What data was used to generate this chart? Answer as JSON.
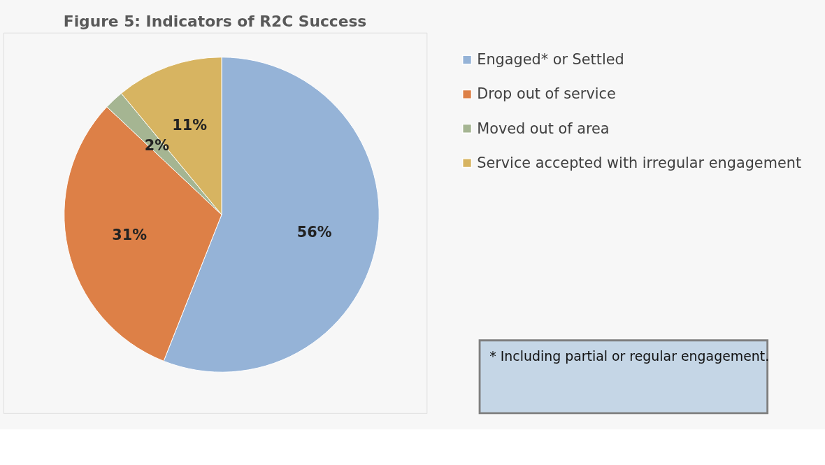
{
  "chart_data": {
    "type": "pie",
    "title": "Figure 5: Indicators of R2C Success",
    "categories": [
      "Engaged* or Settled",
      "Drop out of service",
      "Moved out of area",
      "Service accepted with irregular engagement"
    ],
    "values": [
      56,
      31,
      2,
      11
    ],
    "colors": [
      "#95b3d7",
      "#dd8047",
      "#a5b592",
      "#d7b461"
    ],
    "value_labels": [
      "56%",
      "31%",
      "2%",
      "11%"
    ],
    "legend": "right",
    "annotations": [
      "* Including partial or regular engagement."
    ]
  }
}
